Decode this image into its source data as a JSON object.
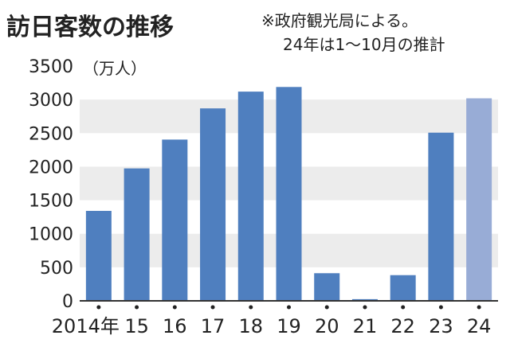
{
  "chart_data": {
    "type": "bar",
    "title": "訪日客数の推移",
    "note_lines": [
      "※政府観光局による。",
      "24年は1～10月の推計"
    ],
    "unit": "（万人）",
    "categories": [
      "2014年",
      "15",
      "16",
      "17",
      "18",
      "19",
      "20",
      "21",
      "22",
      "23",
      "24"
    ],
    "values": [
      1341,
      1974,
      2404,
      2869,
      3119,
      3188,
      412,
      25,
      383,
      2507,
      3019
    ],
    "estimated_categories": [
      "24"
    ],
    "ylim": [
      0,
      3500
    ],
    "yticks": [
      0,
      500,
      1000,
      1500,
      2000,
      2500,
      3000,
      3500
    ],
    "grid": "alternating horizontal bands",
    "colors": {
      "bar": "#4f7fbf",
      "estimate_bar": "#98acd6",
      "band": "#ececec",
      "axis": "#333333"
    }
  }
}
